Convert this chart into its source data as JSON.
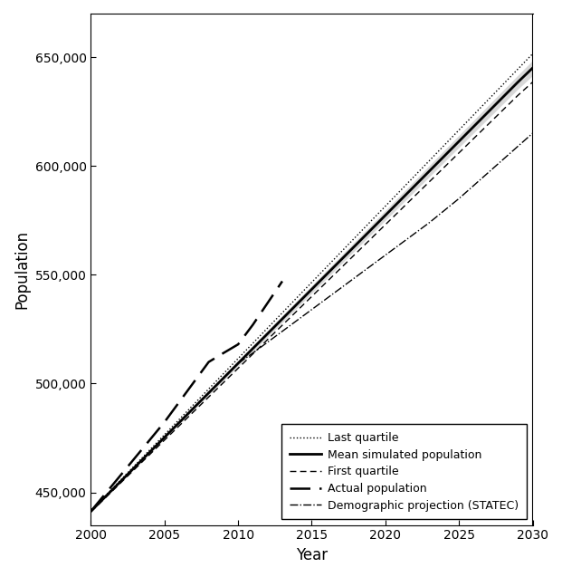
{
  "title": "",
  "xlabel": "Year",
  "ylabel": "Population",
  "xlim": [
    2000,
    2030
  ],
  "ylim": [
    435000,
    670000
  ],
  "yticks": [
    450000,
    500000,
    550000,
    600000,
    650000
  ],
  "xticks": [
    2000,
    2005,
    2010,
    2015,
    2020,
    2025,
    2030
  ],
  "background_color": "#ffffff",
  "legend_labels": [
    "Mean simulated population",
    "First quartile",
    "Last quartile",
    "Actual population",
    "Demographic projection (STATEC)"
  ],
  "years_sim": [
    2000,
    2001,
    2002,
    2003,
    2004,
    2005,
    2006,
    2007,
    2008,
    2009,
    2010,
    2011,
    2012,
    2013,
    2014,
    2015,
    2016,
    2017,
    2018,
    2019,
    2020,
    2021,
    2022,
    2023,
    2024,
    2025,
    2026,
    2027,
    2028,
    2029,
    2030
  ],
  "mean_sim": [
    441300,
    448100,
    454900,
    461700,
    468500,
    475300,
    482100,
    488900,
    495700,
    502500,
    509300,
    516100,
    522900,
    529700,
    536500,
    543300,
    550100,
    556900,
    563700,
    570500,
    577300,
    584100,
    590900,
    597700,
    604500,
    611300,
    618100,
    624900,
    631700,
    638500,
    645000
  ],
  "first_q": [
    441000,
    447600,
    454200,
    460800,
    467400,
    474000,
    480600,
    487200,
    493800,
    500400,
    507000,
    513600,
    520200,
    526800,
    533400,
    540000,
    546600,
    553200,
    559800,
    566400,
    573000,
    579600,
    586200,
    592800,
    599400,
    606000,
    612600,
    619200,
    625800,
    632400,
    638500
  ],
  "last_q": [
    441500,
    448500,
    455500,
    462500,
    469500,
    476500,
    483500,
    490500,
    497500,
    504500,
    511500,
    518500,
    525500,
    532500,
    539500,
    546500,
    553500,
    560500,
    567500,
    574500,
    581500,
    588500,
    595500,
    602500,
    609500,
    616500,
    623500,
    630500,
    637500,
    644500,
    651500
  ],
  "shade_upper": [
    441600,
    448500,
    455400,
    462300,
    469200,
    476100,
    483000,
    489900,
    496800,
    503700,
    510600,
    517500,
    524400,
    531300,
    538200,
    545100,
    552000,
    558900,
    565800,
    572700,
    579600,
    586500,
    593400,
    600300,
    607200,
    614100,
    621000,
    627900,
    634800,
    641700,
    648500
  ],
  "shade_lower": [
    441000,
    447700,
    454400,
    461100,
    467800,
    474500,
    481200,
    487900,
    494600,
    501300,
    508000,
    514700,
    521400,
    528100,
    534800,
    541500,
    548200,
    554900,
    561600,
    568300,
    575000,
    581700,
    588400,
    595100,
    601800,
    608500,
    615200,
    621900,
    628600,
    635300,
    641500
  ],
  "years_actual": [
    2000,
    2001,
    2002,
    2003,
    2004,
    2005,
    2006,
    2007,
    2008,
    2009,
    2010,
    2011,
    2012,
    2013
  ],
  "actual_pop": [
    441300,
    449500,
    457700,
    465900,
    474100,
    482300,
    491500,
    500700,
    509900,
    514000,
    518000,
    527000,
    537000,
    547000
  ],
  "years_proj": [
    2010,
    2011,
    2012,
    2013,
    2014,
    2015,
    2016,
    2017,
    2018,
    2019,
    2020,
    2021,
    2022,
    2023,
    2024,
    2025,
    2026,
    2027,
    2028,
    2029,
    2030
  ],
  "statec_proj": [
    509300,
    514000,
    519000,
    524000,
    529000,
    534000,
    539000,
    544000,
    549000,
    554000,
    559000,
    564000,
    569000,
    574000,
    579500,
    585000,
    591000,
    597000,
    603000,
    609000,
    615000
  ]
}
